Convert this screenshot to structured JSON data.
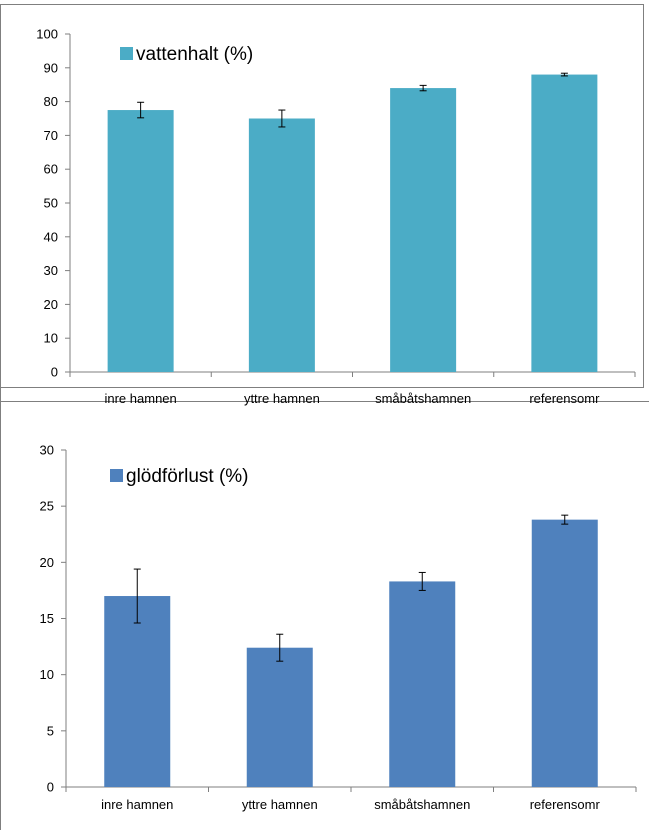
{
  "chart_data": [
    {
      "type": "bar",
      "title": "",
      "xlabel": "",
      "ylabel": "",
      "categories": [
        "inre hamnen",
        "yttre hamnen",
        "småbåtshamnen",
        "referensomr"
      ],
      "series": [
        {
          "name": "vattenhalt (%)",
          "values": [
            77.5,
            75.0,
            84.0,
            88.0
          ],
          "errors": [
            2.3,
            2.5,
            0.8,
            0.4
          ],
          "color": "#4BACC6"
        }
      ],
      "ylim": [
        0,
        100
      ],
      "yticks": [
        0,
        10,
        20,
        30,
        40,
        50,
        60,
        70,
        80,
        90,
        100
      ],
      "grid": false,
      "legend": "top-left"
    },
    {
      "type": "bar",
      "title": "",
      "xlabel": "",
      "ylabel": "",
      "categories": [
        "inre hamnen",
        "yttre hamnen",
        "småbåtshamnen",
        "referensomr"
      ],
      "series": [
        {
          "name": "glödförlust (%)",
          "values": [
            17.0,
            12.4,
            18.3,
            23.8
          ],
          "errors": [
            2.4,
            1.2,
            0.8,
            0.4
          ],
          "color": "#4F81BD"
        }
      ],
      "ylim": [
        0,
        30
      ],
      "yticks": [
        0,
        5,
        10,
        15,
        20,
        25,
        30
      ],
      "grid": false,
      "legend": "top-left"
    }
  ]
}
